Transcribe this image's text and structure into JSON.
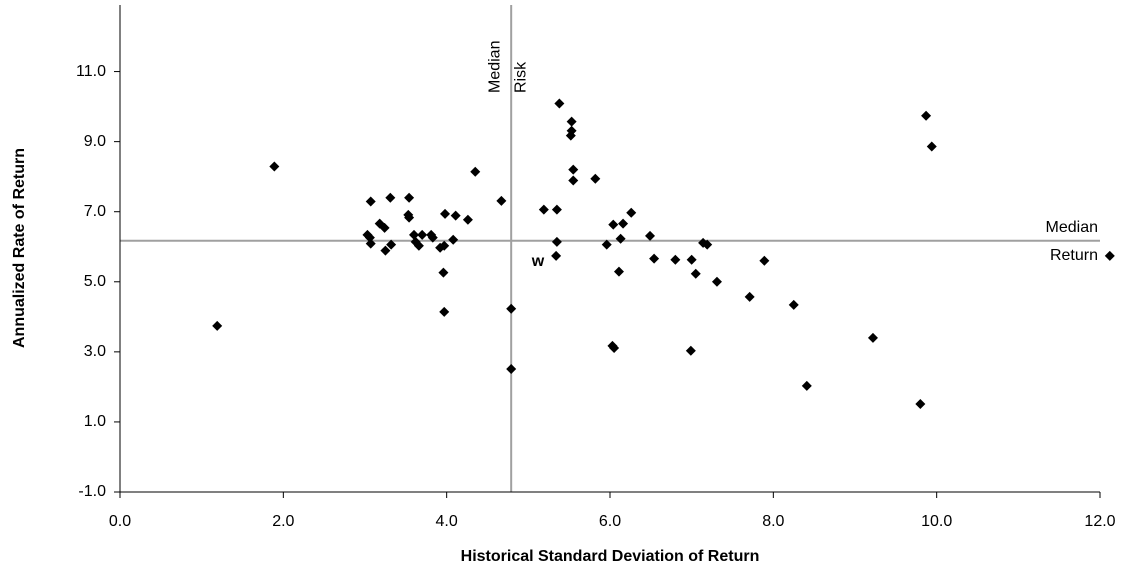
{
  "chart_data": {
    "type": "scatter",
    "x_label": "Historical Standard Deviation of Return",
    "y_label": "Annualized Rate of Return",
    "xlim": [
      0,
      12
    ],
    "ylim": [
      -1,
      12.9
    ],
    "xticks": [
      {
        "value": 0,
        "label": "0.0"
      },
      {
        "value": 2,
        "label": "2.0"
      },
      {
        "value": 4,
        "label": "4.0"
      },
      {
        "value": 6,
        "label": "6.0"
      },
      {
        "value": 8,
        "label": "8.0"
      },
      {
        "value": 10,
        "label": "10.0"
      },
      {
        "value": 12,
        "label": "12.0"
      }
    ],
    "yticks": [
      {
        "value": -1,
        "label": "-1.0"
      },
      {
        "value": 1,
        "label": "1.0"
      },
      {
        "value": 3,
        "label": "3.0"
      },
      {
        "value": 5,
        "label": "5.0"
      },
      {
        "value": 7,
        "label": "7.0"
      },
      {
        "value": 9,
        "label": "9.0"
      },
      {
        "value": 11,
        "label": "11.0"
      }
    ],
    "color": "#000000",
    "reference_lines": [
      {
        "axis": "x",
        "value": 4.79,
        "label": [
          "Median",
          "Risk"
        ],
        "color": "#a0a0a0"
      },
      {
        "axis": "y",
        "value": 6.17,
        "label": [
          "Median",
          "Return"
        ],
        "color": "#a0a0a0"
      }
    ],
    "annotations": [
      "w"
    ],
    "x": [
      1.19,
      1.89,
      3.07,
      3.03,
      3.06,
      3.07,
      3.18,
      3.24,
      3.25,
      3.31,
      3.32,
      3.54,
      3.53,
      3.54,
      3.6,
      3.62,
      3.66,
      3.7,
      3.81,
      3.83,
      3.92,
      3.97,
      3.98,
      3.96,
      3.97,
      4.08,
      4.11,
      4.26,
      4.35,
      4.67,
      4.79,
      4.79,
      5.19,
      5.38,
      5.35,
      5.35,
      5.34,
      5.53,
      5.53,
      5.52,
      5.55,
      5.55,
      5.82,
      5.96,
      6.04,
      6.03,
      6.05,
      6.11,
      6.13,
      6.16,
      6.26,
      6.49,
      6.54,
      6.8,
      7.0,
      6.99,
      7.05,
      7.14,
      7.19,
      7.31,
      7.71,
      7.89,
      8.25,
      8.41,
      9.22,
      9.8,
      9.87,
      9.94,
      12.12
    ],
    "y": [
      3.74,
      8.29,
      7.29,
      6.34,
      6.26,
      6.09,
      6.66,
      6.54,
      5.89,
      7.4,
      6.06,
      7.4,
      6.91,
      6.83,
      6.34,
      6.14,
      6.03,
      6.34,
      6.34,
      6.26,
      5.97,
      6.03,
      6.94,
      5.26,
      4.14,
      6.2,
      6.89,
      6.77,
      8.14,
      7.31,
      4.23,
      2.51,
      7.06,
      10.09,
      7.06,
      6.14,
      5.74,
      9.57,
      9.31,
      9.17,
      8.2,
      7.89,
      7.94,
      6.06,
      6.63,
      3.17,
      3.11,
      5.29,
      6.23,
      6.66,
      6.97,
      6.31,
      5.66,
      5.63,
      5.63,
      3.03,
      5.23,
      6.11,
      6.06,
      5.0,
      4.57,
      5.6,
      4.34,
      2.03,
      3.4,
      1.51,
      9.74,
      8.86,
      5.74
    ]
  }
}
